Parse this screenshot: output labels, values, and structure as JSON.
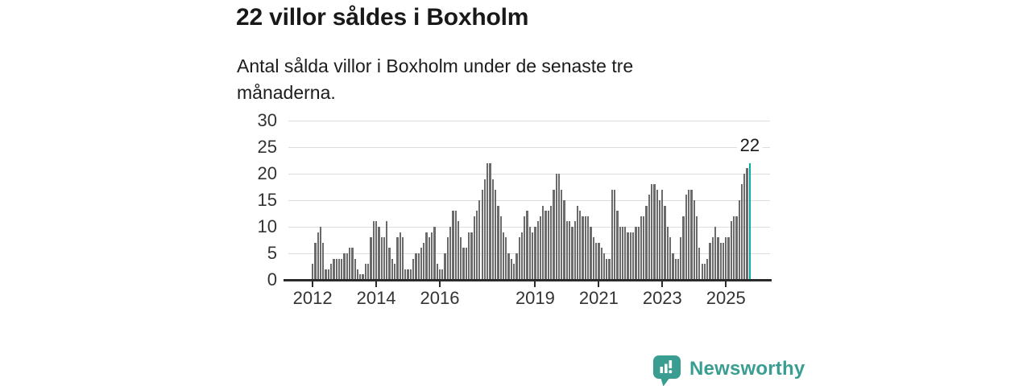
{
  "title": "22 villor såldes i Boxholm",
  "subtitle": "Antal sålda villor i Boxholm under de senaste tre månaderna.",
  "annotation": {
    "label": "22"
  },
  "logo": {
    "text": "Newsworthy",
    "icon": "newsworthy-speech-bubble-bar-chart-icon",
    "color": "#3a9d92"
  },
  "colors": {
    "bar": "#6b6b6b",
    "highlight": "#00b0a5",
    "grid": "#dcdcdc",
    "axis": "#2b2b2b",
    "axis_text": "#333333",
    "title_text": "#191919"
  },
  "chart_data": {
    "type": "bar",
    "title": "22 villor såldes i Boxholm",
    "subtitle": "Antal sålda villor i Boxholm under de senaste tre månaderna.",
    "unit": "villor (rullande 3 månader)",
    "frequency": "monthly",
    "start_month": "2012-01",
    "end_month": "2025-10",
    "ylim": [
      0,
      30
    ],
    "yticks": [
      0,
      5,
      10,
      15,
      20,
      25,
      30
    ],
    "grid": "horizontal",
    "legend": "none",
    "xticks": [
      {
        "label": "2012",
        "month_index": 0
      },
      {
        "label": "2014",
        "month_index": 24
      },
      {
        "label": "2016",
        "month_index": 48
      },
      {
        "label": "2019",
        "month_index": 84
      },
      {
        "label": "2021",
        "month_index": 108
      },
      {
        "label": "2023",
        "month_index": 132
      },
      {
        "label": "2025",
        "month_index": 156
      }
    ],
    "highlight_last_bar": true,
    "last_value": 22,
    "values": [
      3,
      7,
      9,
      10,
      7,
      2,
      2,
      3,
      4,
      4,
      4,
      4,
      5,
      5,
      6,
      6,
      4,
      2,
      1,
      1,
      3,
      3,
      8,
      11,
      11,
      10,
      8,
      8,
      11,
      6,
      4,
      3,
      8,
      9,
      8,
      2,
      2,
      2,
      4,
      5,
      5,
      6,
      7,
      9,
      8,
      9,
      10,
      3,
      2,
      2,
      5,
      8,
      10,
      13,
      13,
      11,
      8,
      6,
      6,
      9,
      9,
      12,
      13,
      15,
      17,
      19,
      22,
      22,
      19,
      17,
      14,
      12,
      9,
      8,
      5,
      4,
      3,
      5,
      8,
      9,
      12,
      13,
      10,
      9,
      10,
      11,
      12,
      14,
      13,
      13,
      14,
      17,
      20,
      20,
      17,
      15,
      11,
      11,
      10,
      11,
      14,
      13,
      12,
      12,
      12,
      10,
      8,
      7,
      7,
      6,
      5,
      4,
      4,
      17,
      17,
      13,
      10,
      10,
      10,
      9,
      9,
      9,
      10,
      10,
      12,
      12,
      14,
      16,
      18,
      18,
      17,
      15,
      17,
      14,
      10,
      8,
      5,
      4,
      4,
      8,
      12,
      16,
      17,
      17,
      15,
      12,
      6,
      3,
      3,
      4,
      7,
      8,
      10,
      8,
      7,
      7,
      8,
      8,
      11,
      12,
      12,
      15,
      18,
      20,
      21,
      22
    ]
  }
}
